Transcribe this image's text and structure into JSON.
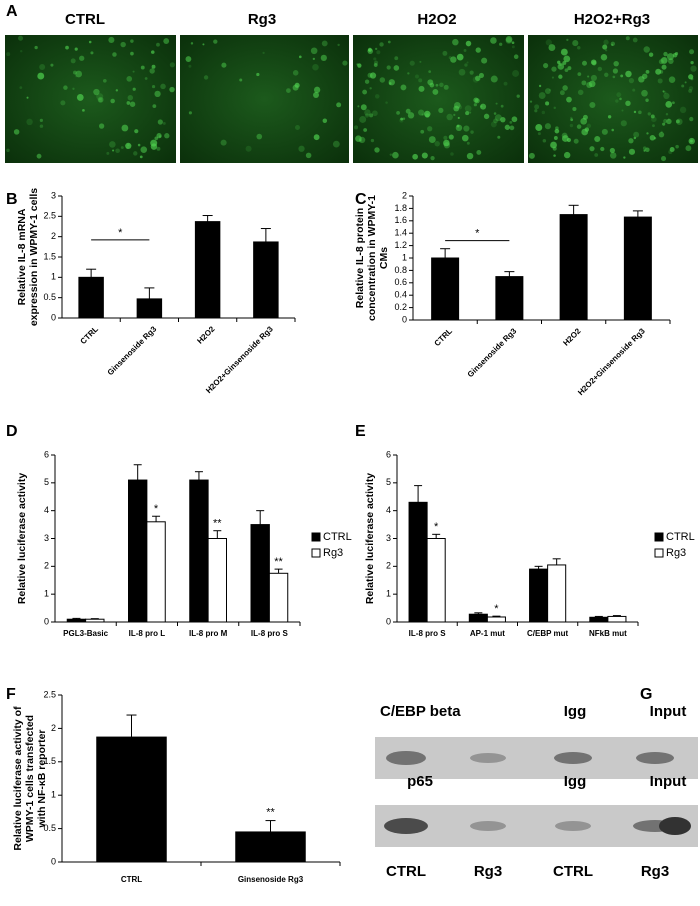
{
  "panel_a": {
    "letter": "A",
    "labels": [
      "CTRL",
      "Rg3",
      "H2O2",
      "H2O2+Rg3"
    ]
  },
  "chart_data": [
    {
      "type": "bar",
      "letter": "B",
      "ylabel": [
        "Relative IL-8 mRNA",
        "expression in WPMY-1 cells"
      ],
      "categories": [
        "CTRL",
        "Ginsenoside Rg3",
        "H2O2",
        "H2O2+Ginsenoside Rg3"
      ],
      "values": [
        1,
        0.47,
        2.37,
        1.87
      ],
      "errors": [
        0.2,
        0.27,
        0.15,
        0.33
      ],
      "color": "#000000",
      "ylim": [
        0,
        3
      ],
      "yticks": [
        0,
        0.5,
        1,
        1.5,
        2,
        2.5,
        3
      ],
      "annotations": [
        "*"
      ]
    },
    {
      "type": "bar",
      "letter": "C",
      "ylabel": [
        "Relative IL-8 protein",
        "concentration in WPMY-1",
        "CMs"
      ],
      "categories": [
        "CTRL",
        "Ginsenoside Rg3",
        "H2O2",
        "H2O2+Ginsenoside Rg3"
      ],
      "values": [
        1,
        0.7,
        1.7,
        1.66
      ],
      "errors": [
        0.15,
        0.08,
        0.15,
        0.1
      ],
      "color": "#000000",
      "ylim": [
        0,
        2
      ],
      "yticks": [
        0,
        0.2,
        0.4,
        0.6,
        0.8,
        1,
        1.2,
        1.4,
        1.6,
        1.8,
        2
      ],
      "annotations": [
        "*"
      ]
    },
    {
      "type": "grouped_bar",
      "letter": "D",
      "ylabel": [
        "Relative luciferase activity"
      ],
      "categories": [
        "PGL3-Basic",
        "IL-8 pro  L",
        "IL-8 pro  M",
        "IL-8 pro  S"
      ],
      "series": [
        {
          "name": "CTRL",
          "color": "#000000",
          "values": [
            0.1,
            5.1,
            5.1,
            3.5
          ],
          "errors": [
            0.03,
            0.55,
            0.3,
            0.5
          ]
        },
        {
          "name": "Rg3",
          "color": "#ffffff",
          "values": [
            0.1,
            3.6,
            3.0,
            1.75
          ],
          "errors": [
            0.02,
            0.2,
            0.28,
            0.15
          ],
          "significance": [
            null,
            "*",
            "**",
            "**"
          ]
        }
      ],
      "ylim": [
        0,
        6
      ],
      "yticks": [
        0,
        1,
        2,
        3,
        4,
        5,
        6
      ],
      "legend": "right"
    },
    {
      "type": "grouped_bar",
      "letter": "E",
      "ylabel": [
        "Relative luciferase activity"
      ],
      "categories": [
        "IL-8 pro  S",
        "AP-1 mut",
        "C/EBP mut",
        "NFkB mut"
      ],
      "series": [
        {
          "name": "CTRL",
          "color": "#000000",
          "values": [
            4.3,
            0.28,
            1.9,
            0.17
          ],
          "errors": [
            0.6,
            0.05,
            0.1,
            0.03
          ]
        },
        {
          "name": "Rg3",
          "color": "#ffffff",
          "values": [
            3.0,
            0.18,
            2.05,
            0.2
          ],
          "errors": [
            0.15,
            0.03,
            0.22,
            0.03
          ],
          "significance": [
            "*",
            "*",
            null,
            null
          ]
        }
      ],
      "ylim": [
        0,
        6
      ],
      "yticks": [
        0,
        1,
        2,
        3,
        4,
        5,
        6
      ],
      "legend": "right"
    },
    {
      "type": "bar",
      "letter": "F",
      "ylabel": [
        "Relative luciferase activity of",
        "WPMY-1 cells transfected",
        "with NF-κB reporter"
      ],
      "categories": [
        "CTRL",
        "Ginsenoside Rg3"
      ],
      "values": [
        1.87,
        0.45
      ],
      "errors": [
        0.33,
        0.17
      ],
      "color": "#000000",
      "value_labels": [
        null,
        "**"
      ],
      "ylim": [
        0,
        2.5
      ],
      "yticks": [
        0,
        0.5,
        1,
        1.5,
        2,
        2.5
      ]
    }
  ],
  "panel_g": {
    "letter": "G",
    "row1": [
      "C/EBP beta",
      "Igg",
      "Input"
    ],
    "row2": [
      "p65",
      "Igg",
      "Input"
    ],
    "lanes": [
      "CTRL",
      "Rg3",
      "CTRL",
      "Rg3"
    ]
  }
}
